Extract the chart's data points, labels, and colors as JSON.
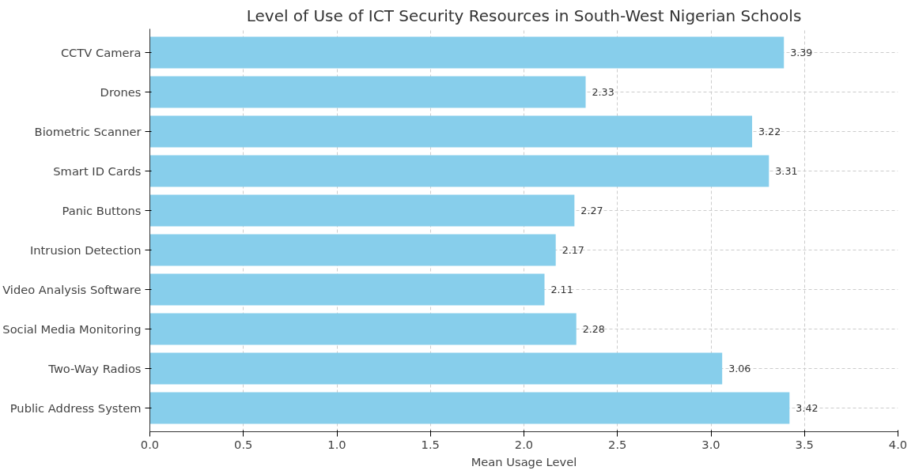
{
  "chart_data": {
    "type": "bar",
    "orientation": "horizontal",
    "title": "Level of Use of ICT Security Resources in South-West Nigerian Schools",
    "xlabel": "Mean Usage Level",
    "categories": [
      "CCTV Camera",
      "Drones",
      "Biometric Scanner",
      "Smart ID Cards",
      "Panic Buttons",
      "Intrusion Detection",
      "Video Analysis Software",
      "Social Media Monitoring",
      "Two-Way Radios",
      "Public Address System"
    ],
    "values": [
      3.39,
      2.33,
      3.22,
      3.31,
      2.27,
      2.17,
      2.11,
      2.28,
      3.06,
      3.42
    ],
    "color": "#87ceeb",
    "xlim": [
      0,
      4
    ],
    "xticks": [
      {
        "value": 0,
        "label": "0.0"
      },
      0.5,
      {
        "value": 1,
        "label": "1.0"
      },
      1.5,
      {
        "value": 2,
        "label": "2.0"
      },
      2.5,
      {
        "value": 3,
        "label": "3.0"
      },
      3.5,
      {
        "value": 4,
        "label": "4.0"
      }
    ],
    "grid": true,
    "data_labels": true
  }
}
